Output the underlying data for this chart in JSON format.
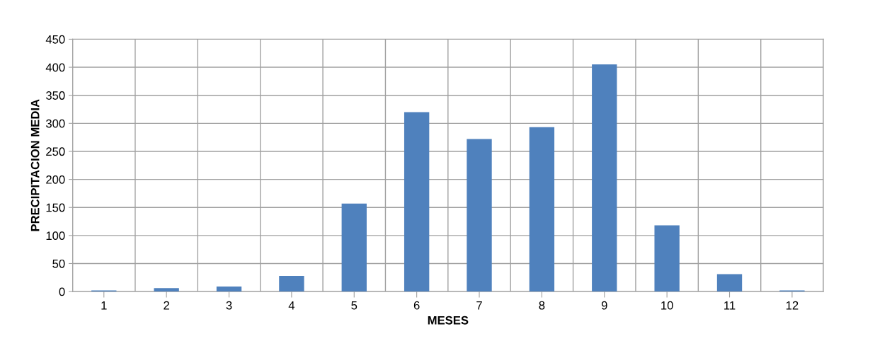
{
  "chart_data": {
    "type": "bar",
    "xlabel": "MESES",
    "ylabel": "PRECIPITACION MEDIA",
    "categories": [
      "1",
      "2",
      "3",
      "4",
      "5",
      "6",
      "7",
      "8",
      "9",
      "10",
      "11",
      "12"
    ],
    "values": [
      2,
      6,
      9,
      28,
      157,
      320,
      272,
      293,
      405,
      118,
      31,
      2
    ],
    "color": "#4f81bd",
    "ylim": [
      0,
      450
    ],
    "yticks": [
      0,
      50,
      100,
      150,
      200,
      250,
      300,
      350,
      400,
      450
    ],
    "grid": true
  }
}
